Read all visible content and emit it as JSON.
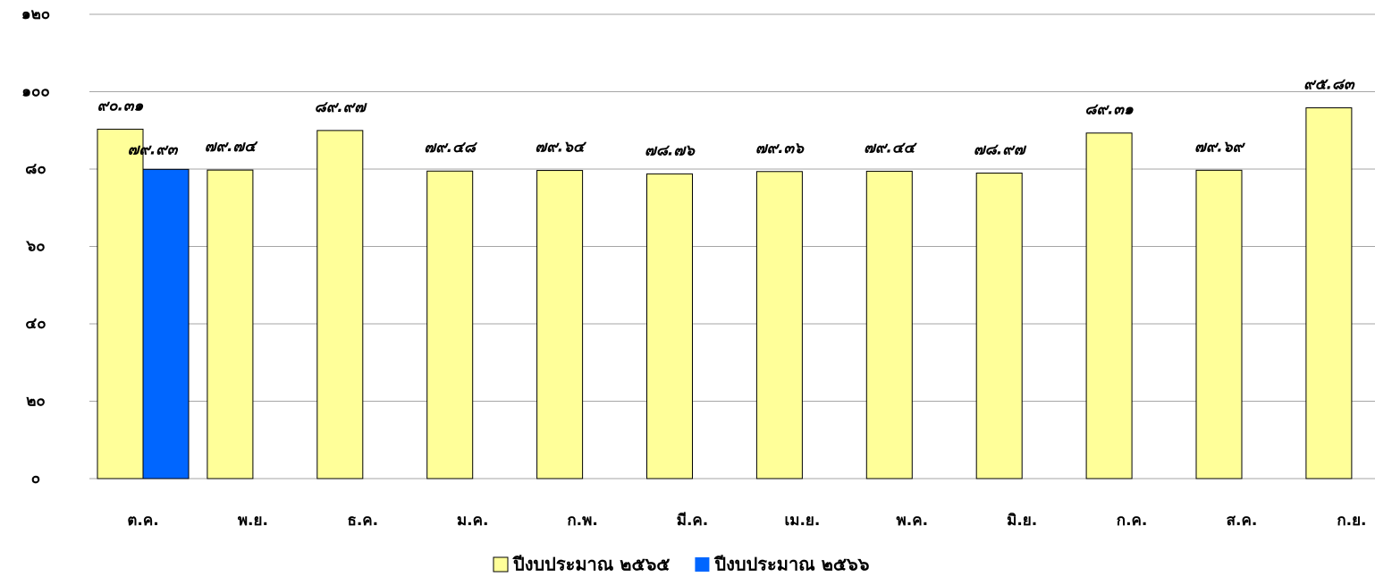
{
  "chart_data": {
    "type": "bar",
    "categories": [
      "ต.ค.",
      "พ.ย.",
      "ธ.ค.",
      "ม.ค.",
      "ก.พ.",
      "มี.ค.",
      "เม.ย.",
      "พ.ค.",
      "มิ.ย.",
      "ก.ค.",
      "ส.ค.",
      "ก.ย."
    ],
    "series": [
      {
        "name": "ปีงบประมาณ ๒๕๖๕",
        "color": "#ffff99",
        "values": [
          90.31,
          79.74,
          89.97,
          79.48,
          79.64,
          78.76,
          79.36,
          79.44,
          78.97,
          89.31,
          79.69,
          95.83
        ],
        "value_labels": [
          "๙๐.๓๑",
          "๗๙.๗๔",
          "๘๙.๙๗",
          "๗๙.๔๘",
          "๗๙.๖๔",
          "๗๘.๗๖",
          "๗๙.๓๖",
          "๗๙.๔๔",
          "๗๘.๙๗",
          "๘๙.๓๑",
          "๗๙.๖๙",
          "๙๕.๘๓"
        ]
      },
      {
        "name": "ปีงบประมาณ ๒๕๖๖",
        "color": "#0066ff",
        "values": [
          79.93,
          null,
          null,
          null,
          null,
          null,
          null,
          null,
          null,
          null,
          null,
          null
        ],
        "value_labels": [
          "๗๙.๙๓",
          null,
          null,
          null,
          null,
          null,
          null,
          null,
          null,
          null,
          null,
          null
        ]
      }
    ],
    "ylim": [
      0,
      120
    ],
    "yticks": [
      {
        "value": 0,
        "label": "๐"
      },
      {
        "value": 20,
        "label": "๒๐"
      },
      {
        "value": 40,
        "label": "๔๐"
      },
      {
        "value": 60,
        "label": "๖๐"
      },
      {
        "value": 80,
        "label": "๘๐"
      },
      {
        "value": 100,
        "label": "๑๐๐"
      },
      {
        "value": 120,
        "label": "๑๒๐"
      }
    ],
    "grid": true,
    "legend": "bottom"
  }
}
